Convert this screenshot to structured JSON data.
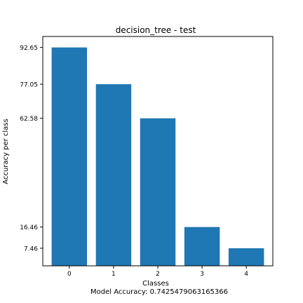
{
  "chart_data": {
    "type": "bar",
    "title": "decision_tree - test",
    "xlabel": "Classes",
    "ylabel": "Accuracy per class",
    "footer": "Model Accuracy: 0.7425479063165366",
    "categories": [
      "0",
      "1",
      "2",
      "3",
      "4"
    ],
    "values": [
      92.65,
      77.05,
      62.58,
      16.46,
      7.46
    ],
    "yticks": [
      7.46,
      16.46,
      62.58,
      77.05,
      92.65
    ],
    "ytick_labels": [
      "7.46",
      "16.46",
      "62.58",
      "77.05",
      "92.65"
    ],
    "ylim": [
      0,
      97.3
    ],
    "bar_color": "#1f77b4",
    "grid": false,
    "legend": "none"
  }
}
